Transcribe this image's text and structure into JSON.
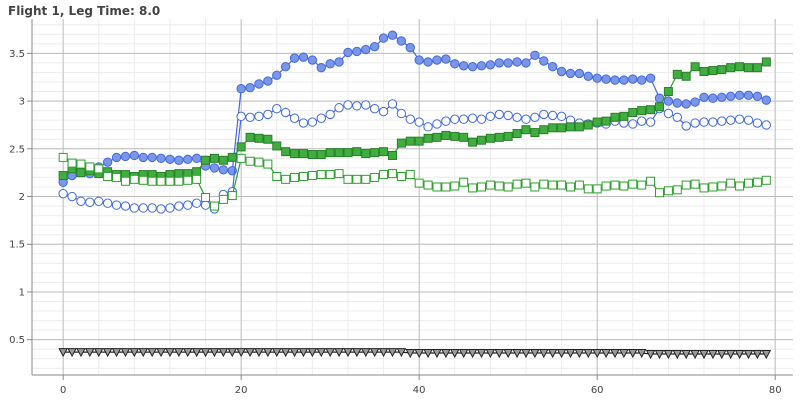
{
  "chart_data": {
    "type": "line",
    "title": "Flight 1, Leg Time: 8.0",
    "xlabel": "",
    "ylabel": "",
    "xlim": [
      -3.5,
      82
    ],
    "ylim": [
      0.13,
      3.86
    ],
    "x_ticks": [
      0,
      20,
      40,
      60,
      80
    ],
    "y_ticks": [
      0.5,
      1,
      1.5,
      2,
      2.5,
      3,
      3.5
    ],
    "x_minor_step": 4,
    "y_minor_step": 0.1,
    "grid": true,
    "legend": "none",
    "x": [
      0,
      1,
      2,
      3,
      4,
      5,
      6,
      7,
      8,
      9,
      10,
      11,
      12,
      13,
      14,
      15,
      16,
      17,
      18,
      19,
      20,
      21,
      22,
      23,
      24,
      25,
      26,
      27,
      28,
      29,
      30,
      31,
      32,
      33,
      34,
      35,
      36,
      37,
      38,
      39,
      40,
      41,
      42,
      43,
      44,
      45,
      46,
      47,
      48,
      49,
      50,
      51,
      52,
      53,
      54,
      55,
      56,
      57,
      58,
      59,
      60,
      61,
      62,
      63,
      64,
      65,
      66,
      67,
      68,
      69,
      70,
      71,
      72,
      73,
      74,
      75,
      76,
      77,
      78,
      79
    ],
    "series": [
      {
        "marker": "filled-circle",
        "color": "#4169e1",
        "values": [
          2.15,
          2.22,
          2.28,
          2.24,
          2.31,
          2.36,
          2.41,
          2.42,
          2.43,
          2.41,
          2.41,
          2.4,
          2.39,
          2.38,
          2.39,
          2.4,
          2.32,
          2.3,
          2.28,
          2.27,
          3.13,
          3.14,
          3.18,
          3.21,
          3.27,
          3.36,
          3.45,
          3.46,
          3.43,
          3.35,
          3.39,
          3.41,
          3.51,
          3.52,
          3.54,
          3.57,
          3.66,
          3.69,
          3.63,
          3.56,
          3.43,
          3.41,
          3.43,
          3.44,
          3.39,
          3.37,
          3.36,
          3.37,
          3.38,
          3.4,
          3.4,
          3.41,
          3.4,
          3.48,
          3.42,
          3.36,
          3.31,
          3.29,
          3.29,
          3.26,
          3.24,
          3.23,
          3.22,
          3.22,
          3.23,
          3.22,
          3.24,
          3.03,
          3.0,
          2.98,
          2.97,
          2.99,
          3.04,
          3.03,
          3.04,
          3.05,
          3.06,
          3.06,
          3.05,
          3.01
        ]
      },
      {
        "marker": "open-circle",
        "color": "#4169e1",
        "values": [
          2.03,
          2.0,
          1.95,
          1.94,
          1.95,
          1.93,
          1.91,
          1.9,
          1.88,
          1.88,
          1.88,
          1.87,
          1.88,
          1.9,
          1.91,
          1.93,
          1.91,
          1.87,
          2.02,
          2.05,
          2.84,
          2.83,
          2.84,
          2.86,
          2.92,
          2.88,
          2.82,
          2.77,
          2.78,
          2.82,
          2.86,
          2.93,
          2.96,
          2.95,
          2.96,
          2.92,
          2.89,
          2.97,
          2.87,
          2.81,
          2.78,
          2.73,
          2.76,
          2.79,
          2.81,
          2.81,
          2.82,
          2.81,
          2.84,
          2.86,
          2.85,
          2.83,
          2.81,
          2.83,
          2.86,
          2.85,
          2.84,
          2.8,
          2.77,
          2.76,
          2.77,
          2.76,
          2.79,
          2.77,
          2.76,
          2.79,
          2.78,
          2.92,
          2.87,
          2.83,
          2.74,
          2.77,
          2.78,
          2.78,
          2.79,
          2.8,
          2.81,
          2.8,
          2.77,
          2.75
        ]
      },
      {
        "marker": "filled-square",
        "color": "#2ca02c",
        "values": [
          2.22,
          2.29,
          2.25,
          2.27,
          2.24,
          2.26,
          2.23,
          2.23,
          2.21,
          2.23,
          2.23,
          2.21,
          2.23,
          2.24,
          2.24,
          2.26,
          2.38,
          2.4,
          2.38,
          2.41,
          2.52,
          2.62,
          2.61,
          2.6,
          2.53,
          2.47,
          2.45,
          2.45,
          2.44,
          2.44,
          2.46,
          2.46,
          2.46,
          2.47,
          2.45,
          2.46,
          2.47,
          2.43,
          2.56,
          2.58,
          2.58,
          2.61,
          2.62,
          2.64,
          2.63,
          2.62,
          2.57,
          2.59,
          2.61,
          2.62,
          2.63,
          2.66,
          2.7,
          2.67,
          2.7,
          2.72,
          2.72,
          2.73,
          2.73,
          2.75,
          2.78,
          2.79,
          2.83,
          2.84,
          2.88,
          2.9,
          2.91,
          2.94,
          3.1,
          3.28,
          3.26,
          3.36,
          3.31,
          3.32,
          3.33,
          3.35,
          3.36,
          3.35,
          3.35,
          3.41
        ]
      },
      {
        "marker": "open-square",
        "color": "#2ca02c",
        "values": [
          2.41,
          2.35,
          2.34,
          2.31,
          2.29,
          2.21,
          2.2,
          2.16,
          2.18,
          2.17,
          2.16,
          2.16,
          2.16,
          2.16,
          2.17,
          2.18,
          1.99,
          1.9,
          1.97,
          2.01,
          2.4,
          2.37,
          2.36,
          2.34,
          2.21,
          2.18,
          2.2,
          2.21,
          2.22,
          2.23,
          2.23,
          2.24,
          2.18,
          2.18,
          2.18,
          2.2,
          2.23,
          2.24,
          2.21,
          2.23,
          2.14,
          2.12,
          2.1,
          2.1,
          2.11,
          2.15,
          2.09,
          2.1,
          2.12,
          2.11,
          2.1,
          2.13,
          2.14,
          2.1,
          2.13,
          2.12,
          2.12,
          2.1,
          2.12,
          2.08,
          2.08,
          2.11,
          2.12,
          2.11,
          2.13,
          2.12,
          2.16,
          2.04,
          2.06,
          2.07,
          2.12,
          2.13,
          2.09,
          2.1,
          2.11,
          2.14,
          2.11,
          2.14,
          2.15,
          2.17
        ]
      },
      {
        "marker": "down-triangle",
        "color": "#222222",
        "values": [
          0.37,
          0.37,
          0.37,
          0.37,
          0.37,
          0.37,
          0.37,
          0.37,
          0.37,
          0.37,
          0.37,
          0.37,
          0.37,
          0.37,
          0.37,
          0.37,
          0.37,
          0.37,
          0.37,
          0.37,
          0.37,
          0.37,
          0.37,
          0.37,
          0.37,
          0.37,
          0.37,
          0.37,
          0.37,
          0.37,
          0.37,
          0.37,
          0.37,
          0.37,
          0.37,
          0.37,
          0.37,
          0.37,
          0.37,
          0.36,
          0.36,
          0.36,
          0.36,
          0.36,
          0.36,
          0.36,
          0.36,
          0.36,
          0.36,
          0.36,
          0.36,
          0.36,
          0.36,
          0.36,
          0.36,
          0.36,
          0.36,
          0.36,
          0.36,
          0.36,
          0.36,
          0.36,
          0.36,
          0.36,
          0.36,
          0.36,
          0.35,
          0.35,
          0.35,
          0.35,
          0.35,
          0.35,
          0.35,
          0.35,
          0.35,
          0.35,
          0.35,
          0.35,
          0.35,
          0.35
        ]
      }
    ]
  }
}
